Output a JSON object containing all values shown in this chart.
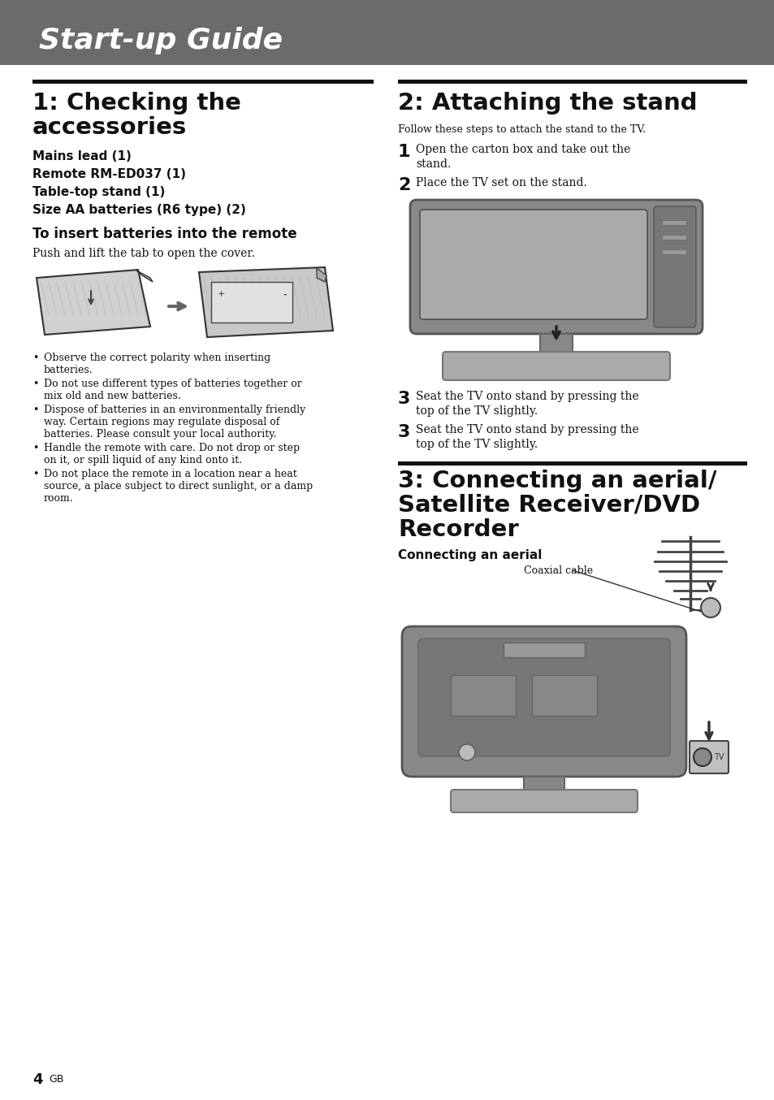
{
  "background_color": "#ffffff",
  "header_bg_color": "#6b6b6b",
  "header_text": "Start-up Guide",
  "header_text_color": "#ffffff",
  "divider_color": "#111111",
  "section1_title_line1": "1: Checking the",
  "section1_title_line2": "accessories",
  "section1_items": [
    "Mains lead (1)",
    "Remote RM-ED037 (1)",
    "Table-top stand (1)",
    "Size AA batteries (R6 type) (2)"
  ],
  "section1_sub_title": "To insert batteries into the remote",
  "section1_body1": "Push and lift the tab to open the cover.",
  "section1_bullets": [
    [
      "Observe the correct polarity when inserting",
      "batteries."
    ],
    [
      "Do not use different types of batteries together or",
      "mix old and new batteries."
    ],
    [
      "Dispose of batteries in an environmentally friendly",
      "way. Certain regions may regulate disposal of",
      "batteries. Please consult your local authority."
    ],
    [
      "Handle the remote with care. Do not drop or step",
      "on it, or spill liquid of any kind onto it."
    ],
    [
      "Do not place the remote in a location near a heat",
      "source, a place subject to direct sunlight, or a damp",
      "room."
    ]
  ],
  "section2_title": "2: Attaching the stand",
  "section2_intro": "Follow these steps to attach the stand to the TV.",
  "section2_steps": [
    [
      "Open the carton box and take out the",
      "stand."
    ],
    [
      "Place the TV set on the stand."
    ],
    [
      "Seat the TV onto stand by pressing the",
      "top of the TV slightly."
    ]
  ],
  "section3_title_line1": "3: Connecting an aerial/",
  "section3_title_line2": "Satellite Receiver/DVD",
  "section3_title_line3": "Recorder",
  "section3_sub": "Connecting an aerial",
  "section3_label": "Coaxial cable",
  "page_number": "4",
  "page_suffix": "GB",
  "header_color": "#6b6b6b",
  "tv_color": "#8a8a8a",
  "tv_dark": "#555555",
  "tv_light": "#aaaaaa",
  "stand_color": "#999999",
  "remote_color": "#b0b0b0"
}
